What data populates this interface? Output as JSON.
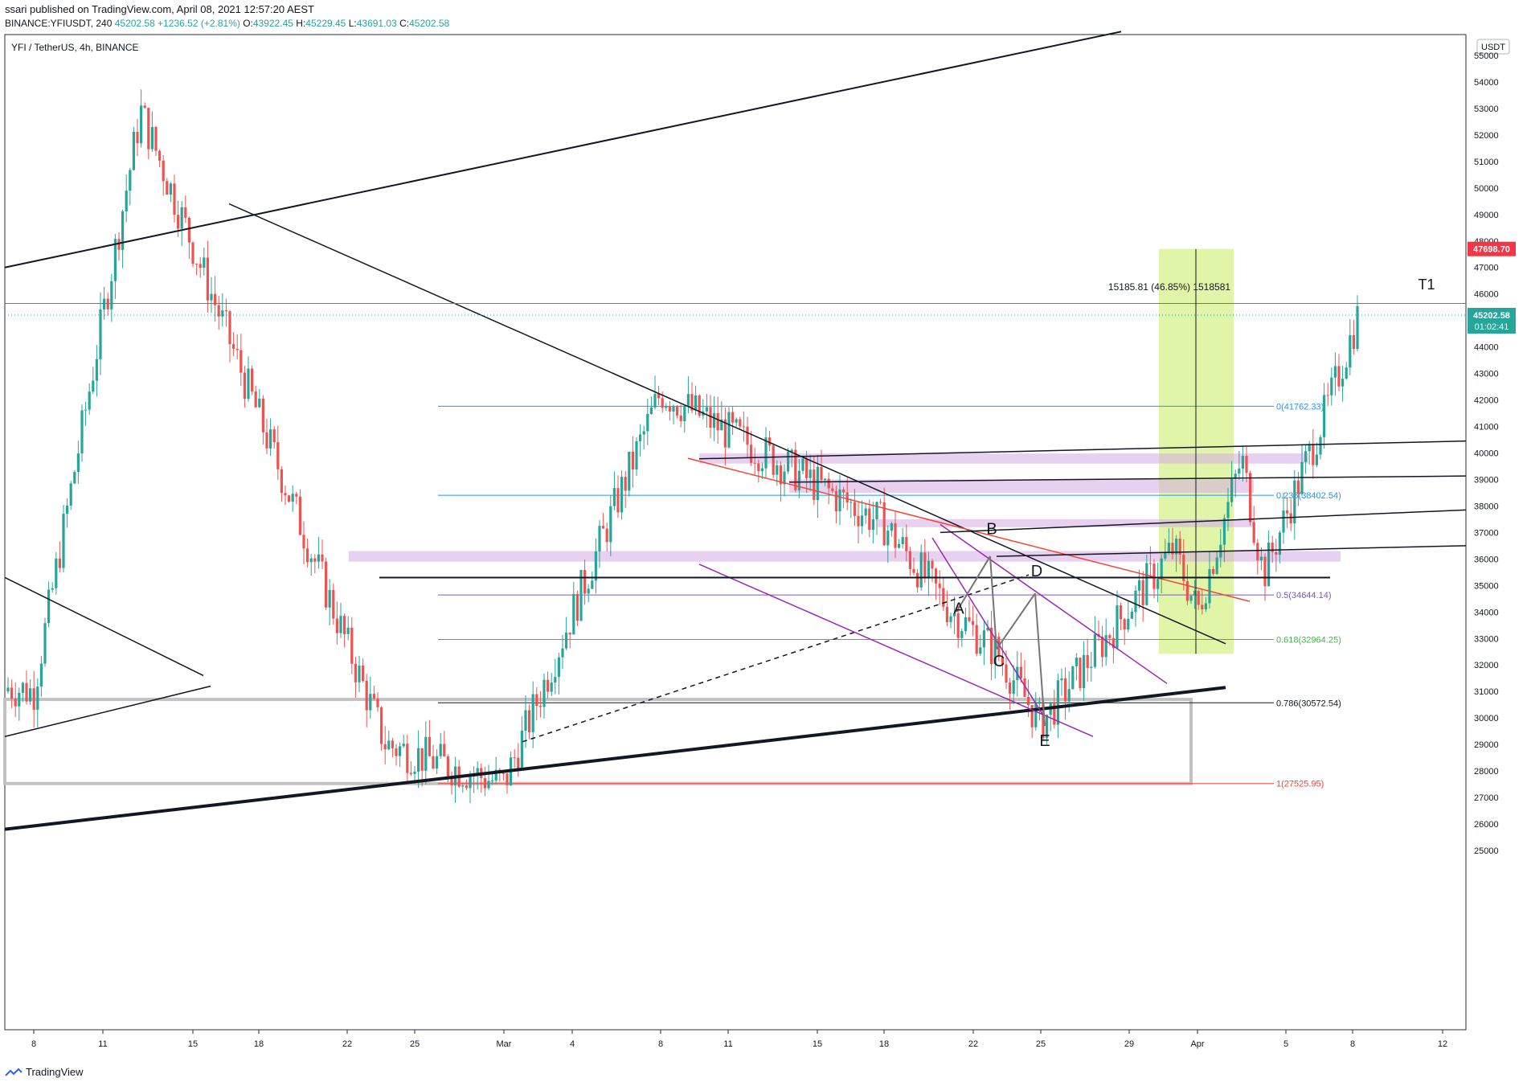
{
  "header": {
    "publish_line": "ssari published on TradingView.com, April 08, 2021 12:57:20 AEST",
    "symbol_line_prefix": "BINANCE:YFIUSDT, 240",
    "price": "45202.58",
    "change": "+1236.52 (+2.81%)",
    "ohlc_o_label": "O:",
    "ohlc_o": "43922.45",
    "ohlc_h_label": "H:",
    "ohlc_h": "45229.45",
    "ohlc_l_label": "L:",
    "ohlc_l": "43691.03",
    "ohlc_c_label": "C:",
    "ohlc_c": "45202.58"
  },
  "footer": {
    "brand": "TradingView"
  },
  "chart_data": {
    "type": "candlestick",
    "title": "YFI / TetherUS, 4h, BINANCE",
    "currency": "USDT",
    "ylim": [
      24800,
      55800
    ],
    "y_ticks": [
      25000,
      26000,
      27000,
      28000,
      29000,
      30000,
      31000,
      32000,
      33000,
      34000,
      35000,
      36000,
      37000,
      38000,
      39000,
      40000,
      41000,
      42000,
      43000,
      44000,
      45000,
      46000,
      47000,
      48000,
      49000,
      50000,
      51000,
      52000,
      53000,
      54000,
      55000
    ],
    "x_ticks": [
      "8",
      "11",
      "15",
      "18",
      "22",
      "25",
      "Mar",
      "4",
      "8",
      "11",
      "15",
      "18",
      "22",
      "25",
      "29",
      "Apr",
      "5",
      "8",
      "12"
    ],
    "last_price_label": "45202.58",
    "countdown_label": "01:02:41",
    "target_price_label": "47698.70",
    "target_label": "T1",
    "measure_label": "15185.81 (46.85%) 1518581",
    "fib_levels": [
      {
        "label": "0(41762.33)",
        "value": 41762.33,
        "color": "#2196f3"
      },
      {
        "label": "0.236(38402.54)",
        "value": 38402.54,
        "color": "#2196f3"
      },
      {
        "label": "0.5(34644.14)",
        "value": 34644.14,
        "color": "#7e57c2"
      },
      {
        "label": "0.618(32964.25)",
        "value": 32964.25,
        "color": "#4caf50"
      },
      {
        "label": "0.786(30572.54)",
        "value": 30572.54,
        "color": "#131722"
      },
      {
        "label": "1(27525.95)",
        "value": 27525.95,
        "color": "#f44336"
      }
    ],
    "wave_labels": [
      "A",
      "B",
      "C",
      "D",
      "E"
    ],
    "key_points": [
      {
        "x": "Feb 8",
        "y": 31000
      },
      {
        "x": "Feb 12",
        "y": 52900
      },
      {
        "x": "Feb 23",
        "y": 29000
      },
      {
        "x": "Mar 1",
        "y": 27500
      },
      {
        "x": "Mar 8",
        "y": 42300
      },
      {
        "x": "Mar 18",
        "y": 37300
      },
      {
        "x": "Mar 21",
        "y": 34000
      },
      {
        "x": "Mar 23",
        "y": 32500
      },
      {
        "x": "Mar 25",
        "y": 29800
      },
      {
        "x": "Mar 31",
        "y": 36400
      },
      {
        "x": "Apr 1",
        "y": 34000
      },
      {
        "x": "Apr 3",
        "y": 39800
      },
      {
        "x": "Apr 4",
        "y": 35400
      },
      {
        "x": "Apr 7",
        "y": 42000
      },
      {
        "x": "Apr 8",
        "y": 45202.58
      }
    ]
  }
}
